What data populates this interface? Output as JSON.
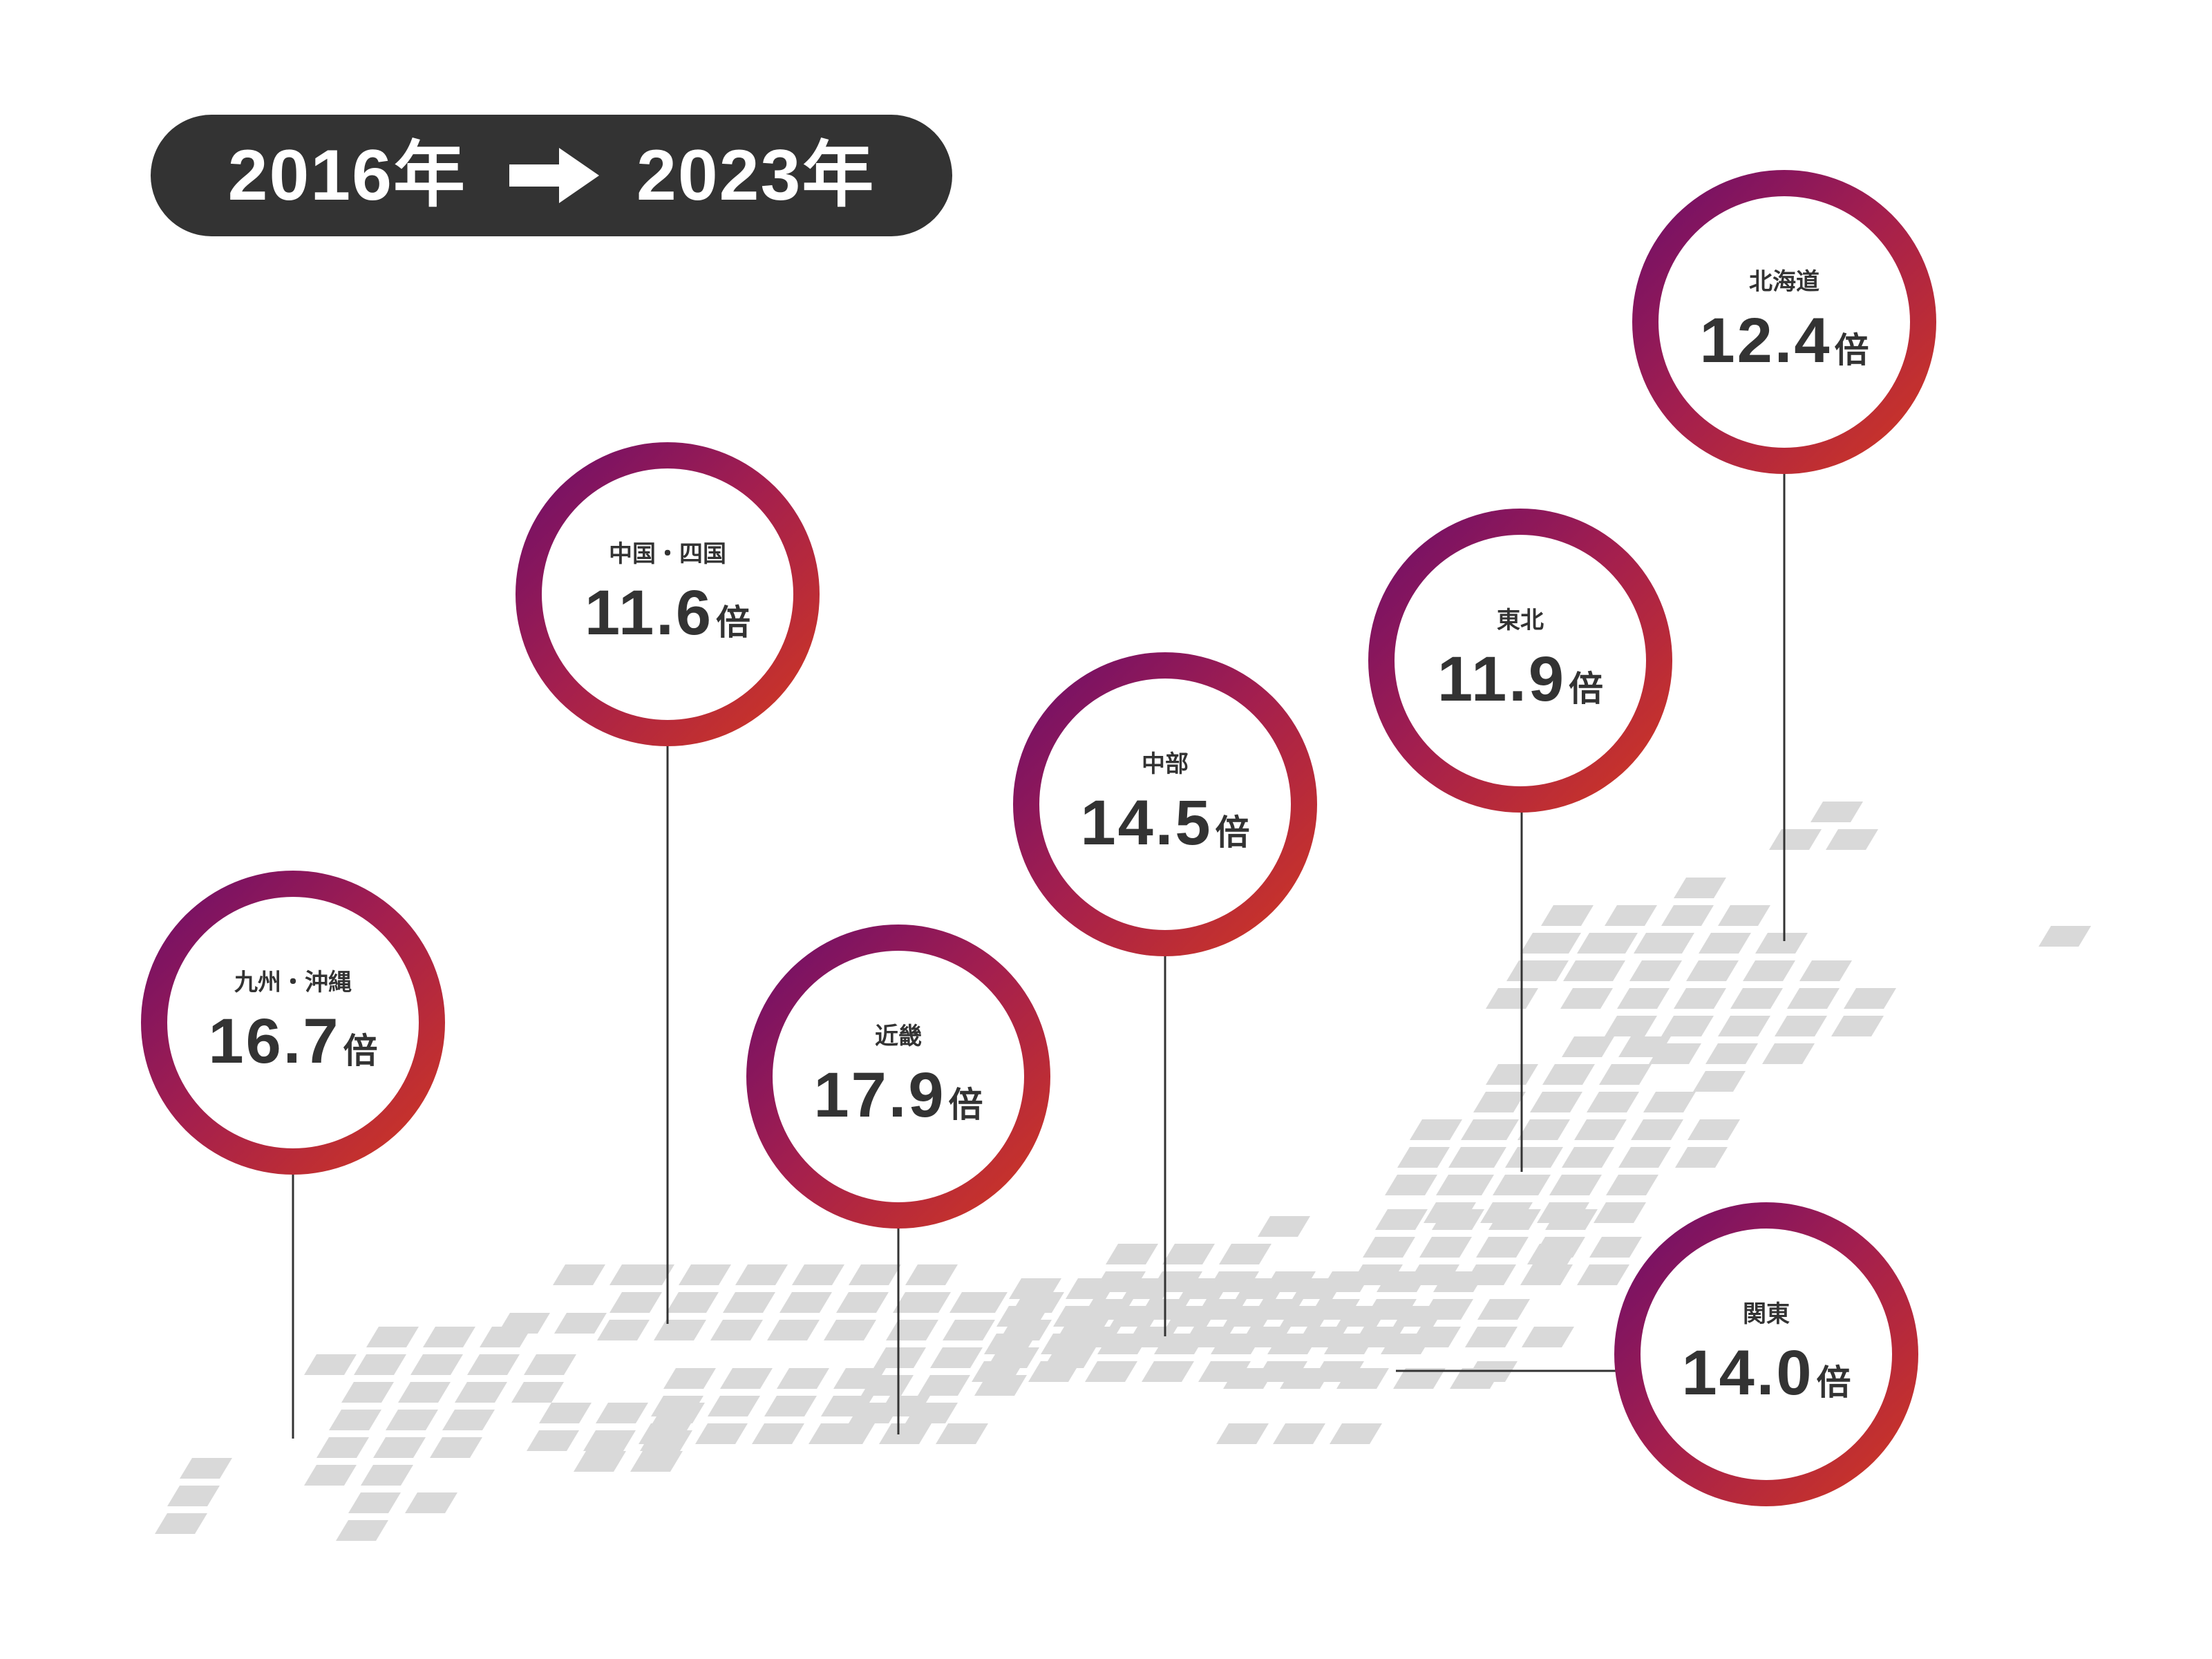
{
  "header": {
    "start_year": "2016年",
    "end_year": "2023年",
    "arrow_icon": "right-arrow-icon"
  },
  "colors": {
    "badge_bg": "#333333",
    "ring_start": "#6a0d6c",
    "ring_mid": "#a41f4e",
    "ring_end": "#d2391f",
    "tile": "#d9d9d9",
    "leader_line": "#333333",
    "text": "#333333"
  },
  "regions": [
    {
      "name": "九州・沖縄",
      "value": "16.7",
      "unit": "倍"
    },
    {
      "name": "中国・四国",
      "value": "11.6",
      "unit": "倍"
    },
    {
      "name": "近畿",
      "value": "17.9",
      "unit": "倍"
    },
    {
      "name": "中部",
      "value": "14.5",
      "unit": "倍"
    },
    {
      "name": "東北",
      "value": "11.9",
      "unit": "倍"
    },
    {
      "name": "北海道",
      "value": "12.4",
      "unit": "倍"
    },
    {
      "name": "関東",
      "value": "14.0",
      "unit": "倍"
    }
  ]
}
